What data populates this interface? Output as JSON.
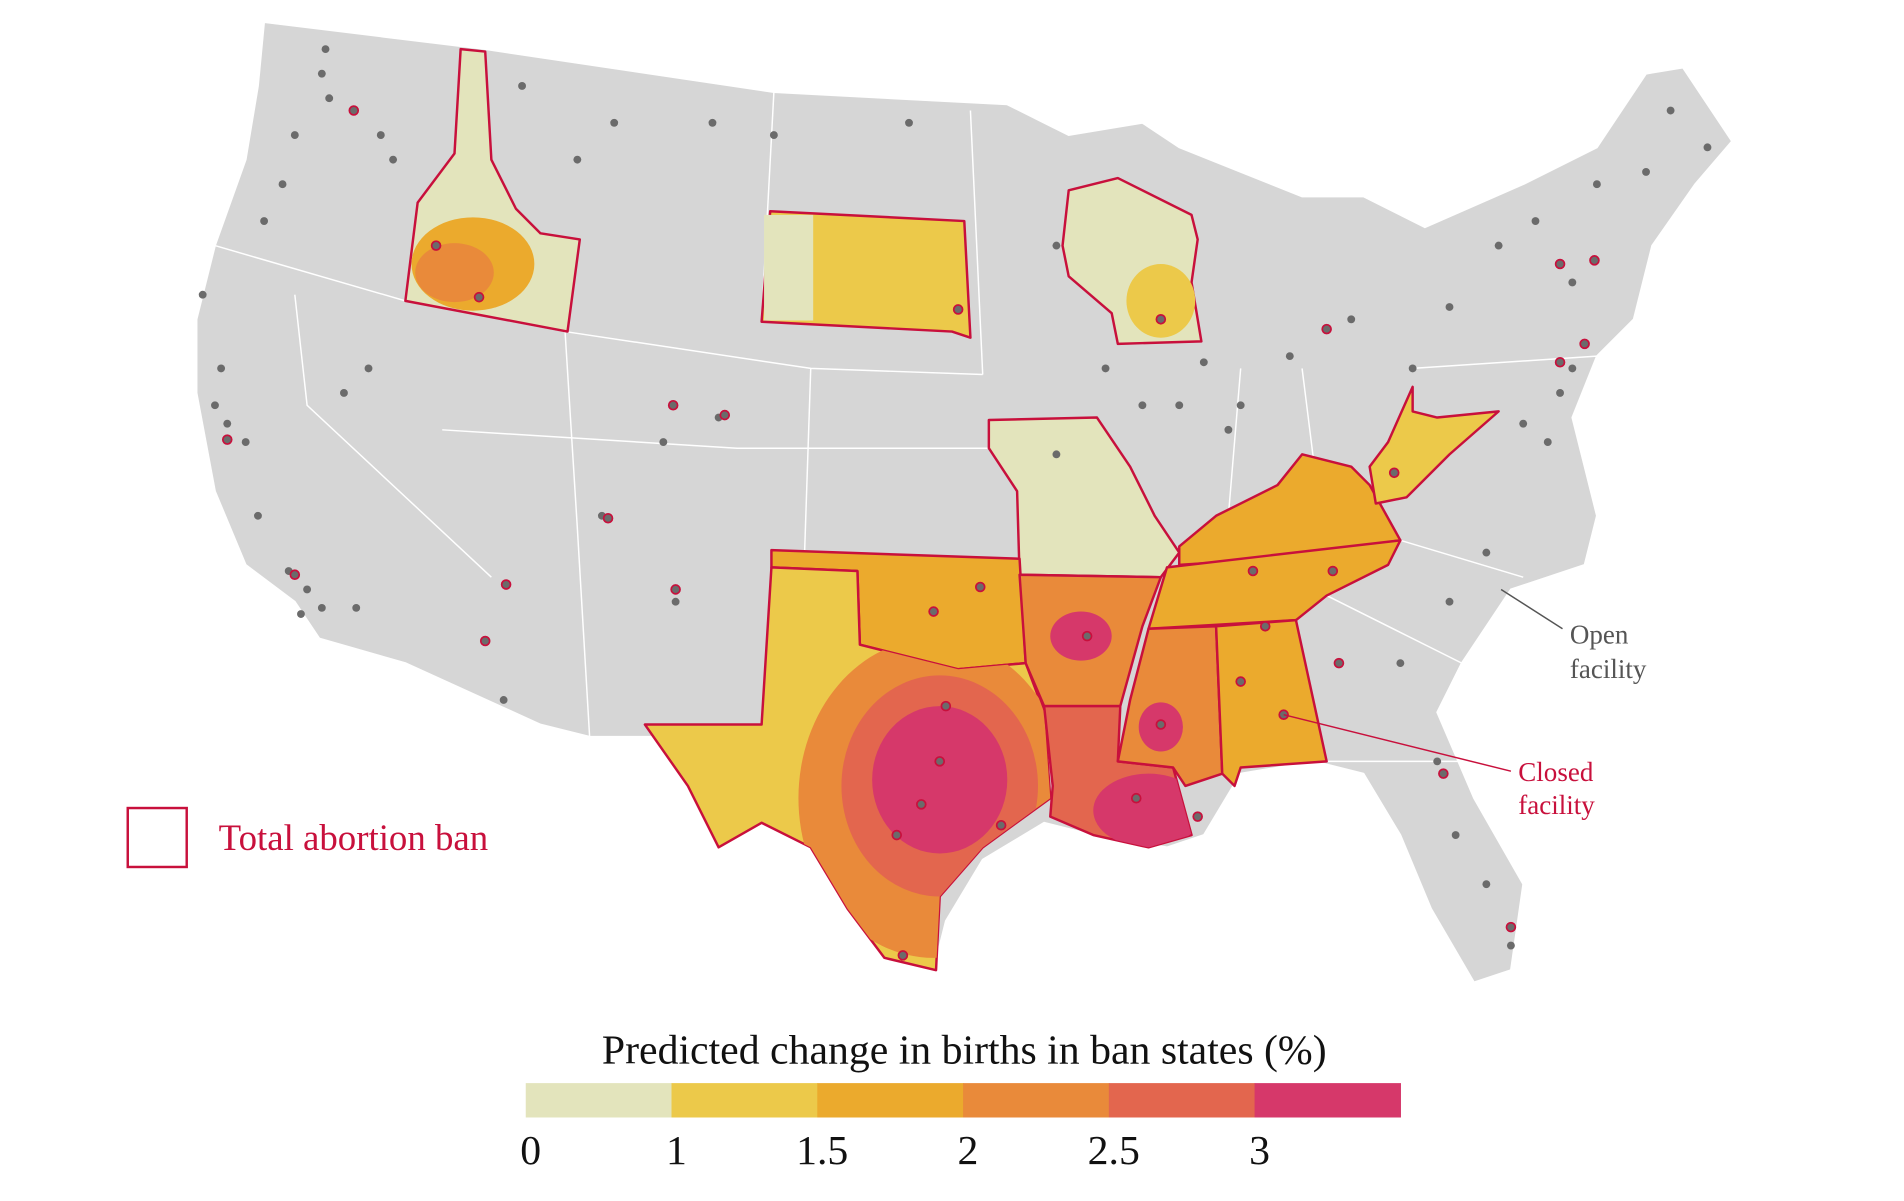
{
  "legend": {
    "title": "Predicted change in births in ban states (%)",
    "ticks": [
      0,
      1,
      1.5,
      2,
      2.5,
      3
    ],
    "colors": [
      "#e3e4bc",
      "#ecc94a",
      "#ebaa2d",
      "#e98a3a",
      "#e3664e",
      "#d6386a"
    ]
  },
  "ban_legend": "Total abortion ban",
  "annotations": {
    "open_facility": [
      "Open",
      "facility"
    ],
    "closed_facility": [
      "Closed",
      "facility"
    ]
  }
}
